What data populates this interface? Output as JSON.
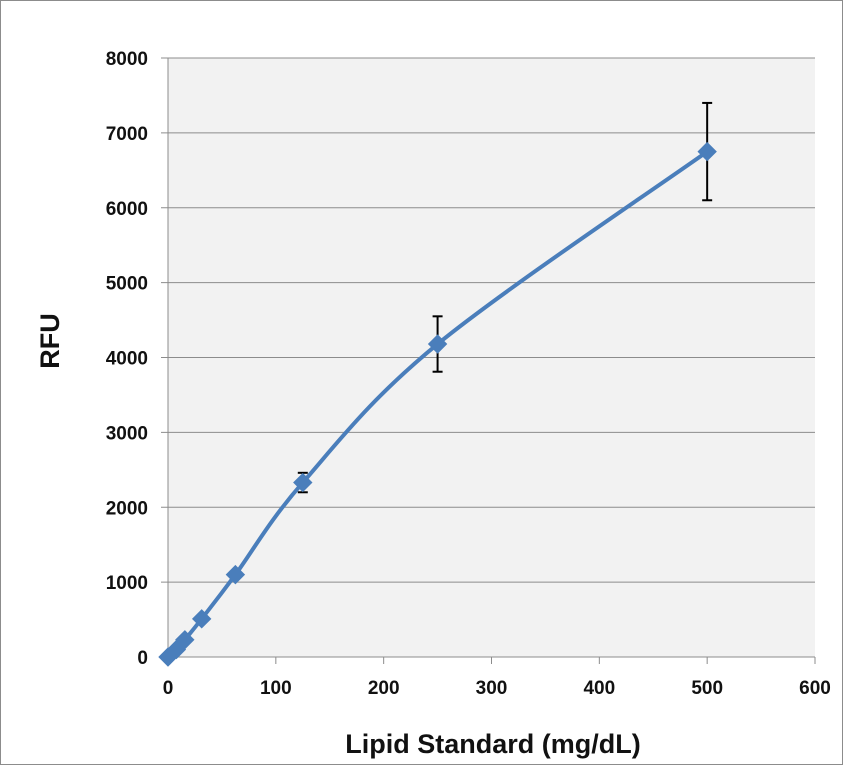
{
  "chart_data": {
    "type": "scatter",
    "title": "",
    "xlabel": "Lipid Standard (mg/dL)",
    "ylabel": "RFU",
    "xlim": [
      0,
      600
    ],
    "ylim": [
      0,
      8000
    ],
    "x_ticks": [
      0,
      100,
      200,
      300,
      400,
      500,
      600
    ],
    "y_ticks": [
      0,
      1000,
      2000,
      3000,
      4000,
      5000,
      6000,
      7000,
      8000
    ],
    "grid": "horizontal",
    "legend": "none",
    "series": [
      {
        "x": [
          0,
          7.8,
          15.6,
          31.25,
          62.5,
          125,
          250,
          500
        ],
        "y": [
          0,
          100,
          230,
          510,
          1100,
          2330,
          4180,
          6750
        ],
        "error": [
          0,
          0,
          0,
          0,
          0,
          130,
          370,
          650
        ],
        "marker": "diamond",
        "color": "#4a7ebb",
        "line": "smooth"
      }
    ],
    "colors": {
      "series": "#4a7ebb",
      "plot_bg": "#f2f2f2",
      "grid": "#8c8c8c",
      "error_bar": "#000000"
    }
  }
}
